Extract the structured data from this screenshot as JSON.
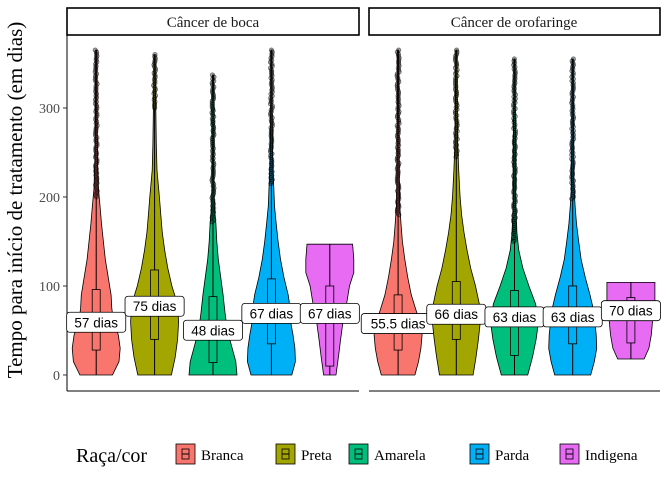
{
  "chart_data": {
    "type": "violin",
    "ylabel": "Tempo para início de tratamento (em dias)",
    "xlabel": "",
    "ylim": [
      -18,
      382
    ],
    "yticks": [
      0,
      100,
      200,
      300
    ],
    "grid": false,
    "legend": {
      "title": "Raça/cor",
      "position": "bottom",
      "entries": [
        {
          "name": "Branca",
          "color": "#F8766D"
        },
        {
          "name": "Preta",
          "color": "#A3A500"
        },
        {
          "name": "Amarela",
          "color": "#00BF7D"
        },
        {
          "name": "Parda",
          "color": "#00B0F6"
        },
        {
          "name": "Indigena",
          "color": "#E76BF3"
        }
      ]
    },
    "panels": [
      {
        "title": "Câncer de boca",
        "groups": [
          {
            "series": "Branca",
            "min": 0,
            "max": 365,
            "q1": 28,
            "median": 57,
            "q3": 96,
            "whisker_low": 0,
            "whisker_high": 200,
            "label": "57 dias",
            "shape": [
              [
                0,
                0.68
              ],
              [
                15,
                0.95
              ],
              [
                30,
                1.0
              ],
              [
                45,
                0.92
              ],
              [
                60,
                0.72
              ],
              [
                75,
                0.65
              ],
              [
                90,
                0.62
              ],
              [
                110,
                0.5
              ],
              [
                130,
                0.38
              ],
              [
                150,
                0.3
              ],
              [
                170,
                0.22
              ],
              [
                190,
                0.16
              ],
              [
                210,
                0.09
              ],
              [
                240,
                0.06
              ],
              [
                270,
                0.04
              ],
              [
                300,
                0.03
              ],
              [
                330,
                0.025
              ],
              [
                365,
                0.02
              ]
            ]
          },
          {
            "series": "Preta",
            "min": 0,
            "max": 360,
            "q1": 40,
            "median": 75,
            "q3": 118,
            "whisker_low": 0,
            "whisker_high": 300,
            "label": "75 dias",
            "shape": [
              [
                0,
                0.7
              ],
              [
                20,
                0.86
              ],
              [
                40,
                0.96
              ],
              [
                60,
                1.0
              ],
              [
                80,
                0.95
              ],
              [
                100,
                0.72
              ],
              [
                120,
                0.55
              ],
              [
                140,
                0.42
              ],
              [
                160,
                0.32
              ],
              [
                180,
                0.26
              ],
              [
                200,
                0.2
              ],
              [
                230,
                0.1
              ],
              [
                260,
                0.07
              ],
              [
                300,
                0.05
              ],
              [
                330,
                0.03
              ],
              [
                360,
                0.02
              ]
            ]
          },
          {
            "series": "Amarela",
            "min": 0,
            "max": 337,
            "q1": 14,
            "median": 48,
            "q3": 88,
            "whisker_low": 0,
            "whisker_high": 172,
            "label": "48 dias",
            "shape": [
              [
                0,
                1.0
              ],
              [
                15,
                0.95
              ],
              [
                30,
                0.8
              ],
              [
                50,
                0.6
              ],
              [
                70,
                0.5
              ],
              [
                90,
                0.42
              ],
              [
                110,
                0.32
              ],
              [
                130,
                0.22
              ],
              [
                150,
                0.16
              ],
              [
                170,
                0.12
              ],
              [
                190,
                0.06
              ],
              [
                210,
                0.04
              ],
              [
                240,
                0.03
              ],
              [
                270,
                0.04
              ],
              [
                300,
                0.05
              ],
              [
                320,
                0.03
              ],
              [
                337,
                0.02
              ]
            ]
          },
          {
            "series": "Parda",
            "min": 0,
            "max": 365,
            "q1": 35,
            "median": 67,
            "q3": 108,
            "whisker_low": 0,
            "whisker_high": 215,
            "label": "67 dias",
            "shape": [
              [
                0,
                0.85
              ],
              [
                15,
                1.0
              ],
              [
                30,
                0.98
              ],
              [
                45,
                0.9
              ],
              [
                60,
                0.8
              ],
              [
                75,
                0.78
              ],
              [
                90,
                0.7
              ],
              [
                110,
                0.52
              ],
              [
                130,
                0.38
              ],
              [
                150,
                0.28
              ],
              [
                170,
                0.2
              ],
              [
                190,
                0.13
              ],
              [
                210,
                0.1
              ],
              [
                240,
                0.06
              ],
              [
                270,
                0.04
              ],
              [
                300,
                0.03
              ],
              [
                330,
                0.025
              ],
              [
                365,
                0.02
              ]
            ]
          },
          {
            "series": "Indigena",
            "min": 0,
            "max": 147,
            "q1": 10,
            "median": 67,
            "q3": 100,
            "whisker_low": 0,
            "whisker_high": 147,
            "label": "67 dias",
            "shape": [
              [
                0,
                0.26
              ],
              [
                20,
                0.36
              ],
              [
                40,
                0.45
              ],
              [
                60,
                0.55
              ],
              [
                80,
                0.7
              ],
              [
                100,
                0.82
              ],
              [
                115,
                1.0
              ],
              [
                130,
                1.0
              ],
              [
                147,
                0.95
              ]
            ]
          }
        ]
      },
      {
        "title": "Câncer de orofaringe",
        "groups": [
          {
            "series": "Branca",
            "min": 0,
            "max": 365,
            "q1": 28,
            "median": 55.5,
            "q3": 90,
            "whisker_low": 0,
            "whisker_high": 180,
            "label": "55.5 dias",
            "shape": [
              [
                0,
                0.7
              ],
              [
                15,
                0.85
              ],
              [
                30,
                0.95
              ],
              [
                45,
                1.0
              ],
              [
                60,
                0.9
              ],
              [
                75,
                0.72
              ],
              [
                90,
                0.55
              ],
              [
                110,
                0.4
              ],
              [
                130,
                0.28
              ],
              [
                150,
                0.18
              ],
              [
                170,
                0.12
              ],
              [
                190,
                0.07
              ],
              [
                220,
                0.05
              ],
              [
                260,
                0.04
              ],
              [
                300,
                0.03
              ],
              [
                365,
                0.02
              ]
            ]
          },
          {
            "series": "Preta",
            "min": 0,
            "max": 365,
            "q1": 40,
            "median": 66,
            "q3": 105,
            "whisker_low": 0,
            "whisker_high": 245,
            "label": "66 dias",
            "shape": [
              [
                0,
                0.7
              ],
              [
                20,
                0.82
              ],
              [
                40,
                0.92
              ],
              [
                60,
                1.0
              ],
              [
                80,
                0.96
              ],
              [
                100,
                0.8
              ],
              [
                120,
                0.6
              ],
              [
                140,
                0.45
              ],
              [
                160,
                0.32
              ],
              [
                180,
                0.22
              ],
              [
                200,
                0.16
              ],
              [
                230,
                0.1
              ],
              [
                260,
                0.06
              ],
              [
                300,
                0.04
              ],
              [
                365,
                0.02
              ]
            ]
          },
          {
            "series": "Amarela",
            "min": 0,
            "max": 355,
            "q1": 22,
            "median": 63,
            "q3": 95,
            "whisker_low": 0,
            "whisker_high": 150,
            "label": "63 dias",
            "shape": [
              [
                0,
                0.55
              ],
              [
                20,
                0.75
              ],
              [
                40,
                0.9
              ],
              [
                60,
                1.0
              ],
              [
                80,
                0.88
              ],
              [
                100,
                0.6
              ],
              [
                120,
                0.35
              ],
              [
                140,
                0.18
              ],
              [
                160,
                0.1
              ],
              [
                200,
                0.05
              ],
              [
                240,
                0.06
              ],
              [
                270,
                0.05
              ],
              [
                300,
                0.03
              ],
              [
                355,
                0.02
              ]
            ]
          },
          {
            "series": "Parda",
            "min": 0,
            "max": 355,
            "q1": 35,
            "median": 63,
            "q3": 100,
            "whisker_low": 0,
            "whisker_high": 198,
            "label": "63 dias",
            "shape": [
              [
                0,
                0.75
              ],
              [
                15,
                0.9
              ],
              [
                30,
                1.0
              ],
              [
                45,
                0.98
              ],
              [
                60,
                0.92
              ],
              [
                75,
                0.85
              ],
              [
                90,
                0.72
              ],
              [
                110,
                0.52
              ],
              [
                130,
                0.35
              ],
              [
                150,
                0.25
              ],
              [
                170,
                0.16
              ],
              [
                190,
                0.1
              ],
              [
                210,
                0.06
              ],
              [
                250,
                0.04
              ],
              [
                300,
                0.03
              ],
              [
                355,
                0.02
              ]
            ]
          },
          {
            "series": "Indigena",
            "min": 18,
            "max": 104,
            "q1": 36,
            "median": 70,
            "q3": 87,
            "whisker_low": 18,
            "whisker_high": 104,
            "label": "70 dias",
            "shape": [
              [
                18,
                0.55
              ],
              [
                30,
                0.75
              ],
              [
                45,
                0.85
              ],
              [
                60,
                0.9
              ],
              [
                75,
                1.0
              ],
              [
                90,
                1.0
              ],
              [
                104,
                1.0
              ]
            ]
          }
        ]
      }
    ]
  }
}
